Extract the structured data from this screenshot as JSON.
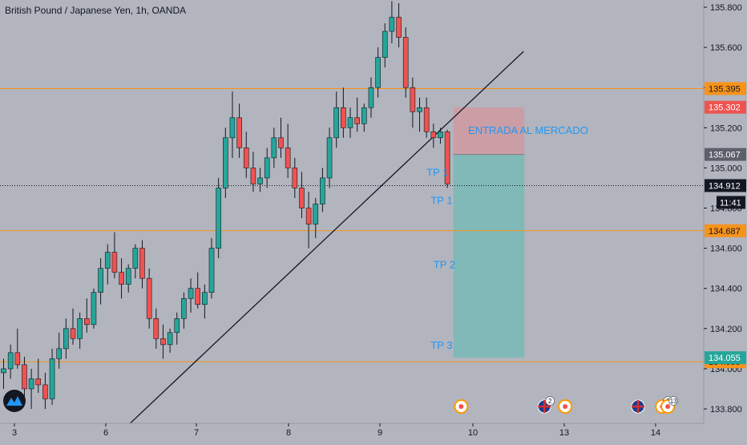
{
  "chart_data": {
    "type": "candlestick",
    "title": "British Pound / Japanese Yen, 1h, OANDA",
    "x_tick_labels": [
      "3",
      "6",
      "7",
      "8",
      "9",
      "10",
      "13",
      "14"
    ],
    "y_tick_labels": [
      "135.800",
      "135.600",
      "135.400",
      "135.200",
      "135.000",
      "134.800",
      "134.600",
      "134.400",
      "134.200",
      "134.000",
      "133.800"
    ],
    "ylim": [
      133.78,
      135.83
    ],
    "candles": [
      [
        133.98,
        134.05,
        133.9,
        134.0
      ],
      [
        134.0,
        134.12,
        133.95,
        134.08
      ],
      [
        134.08,
        134.2,
        134.0,
        134.02
      ],
      [
        134.02,
        134.06,
        133.85,
        133.9
      ],
      [
        133.9,
        134.0,
        133.8,
        133.95
      ],
      [
        133.95,
        134.05,
        133.88,
        133.92
      ],
      [
        133.92,
        133.98,
        133.8,
        133.85
      ],
      [
        133.85,
        134.1,
        133.82,
        134.05
      ],
      [
        134.05,
        134.18,
        134.0,
        134.1
      ],
      [
        134.1,
        134.25,
        134.05,
        134.2
      ],
      [
        134.2,
        134.3,
        134.12,
        134.15
      ],
      [
        134.15,
        134.28,
        134.1,
        134.25
      ],
      [
        134.25,
        134.35,
        134.18,
        134.22
      ],
      [
        134.22,
        134.4,
        134.2,
        134.38
      ],
      [
        134.38,
        134.55,
        134.32,
        134.5
      ],
      [
        134.5,
        134.62,
        134.42,
        134.58
      ],
      [
        134.58,
        134.68,
        134.45,
        134.48
      ],
      [
        134.48,
        134.55,
        134.35,
        134.42
      ],
      [
        134.42,
        134.52,
        134.38,
        134.5
      ],
      [
        134.5,
        134.62,
        134.45,
        134.6
      ],
      [
        134.6,
        134.64,
        134.4,
        134.45
      ],
      [
        134.45,
        134.5,
        134.2,
        134.25
      ],
      [
        134.25,
        134.3,
        134.1,
        134.15
      ],
      [
        134.15,
        134.22,
        134.05,
        134.12
      ],
      [
        134.12,
        134.2,
        134.08,
        134.18
      ],
      [
        134.18,
        134.28,
        134.12,
        134.25
      ],
      [
        134.25,
        134.38,
        134.2,
        134.35
      ],
      [
        134.35,
        134.45,
        134.28,
        134.4
      ],
      [
        134.4,
        134.48,
        134.3,
        134.32
      ],
      [
        134.32,
        134.42,
        134.25,
        134.38
      ],
      [
        134.38,
        134.65,
        134.35,
        134.6
      ],
      [
        134.6,
        134.95,
        134.55,
        134.9
      ],
      [
        134.9,
        135.2,
        134.85,
        135.15
      ],
      [
        135.15,
        135.38,
        135.05,
        135.25
      ],
      [
        135.25,
        135.32,
        135.05,
        135.1
      ],
      [
        135.1,
        135.18,
        134.95,
        135.0
      ],
      [
        135.0,
        135.08,
        134.88,
        134.92
      ],
      [
        134.92,
        135.0,
        134.88,
        134.95
      ],
      [
        134.95,
        135.1,
        134.9,
        135.05
      ],
      [
        135.05,
        135.2,
        135.0,
        135.15
      ],
      [
        135.15,
        135.25,
        135.05,
        135.1
      ],
      [
        135.1,
        135.22,
        134.95,
        135.0
      ],
      [
        135.0,
        135.05,
        134.85,
        134.9
      ],
      [
        134.9,
        134.98,
        134.75,
        134.8
      ],
      [
        134.8,
        134.88,
        134.6,
        134.72
      ],
      [
        134.72,
        134.85,
        134.65,
        134.82
      ],
      [
        134.82,
        135.0,
        134.78,
        134.95
      ],
      [
        134.95,
        135.2,
        134.9,
        135.15
      ],
      [
        135.15,
        135.38,
        135.1,
        135.3
      ],
      [
        135.3,
        135.4,
        135.15,
        135.2
      ],
      [
        135.2,
        135.3,
        135.15,
        135.25
      ],
      [
        135.25,
        135.35,
        135.18,
        135.22
      ],
      [
        135.22,
        135.32,
        135.18,
        135.3
      ],
      [
        135.3,
        135.45,
        135.25,
        135.4
      ],
      [
        135.4,
        135.6,
        135.35,
        135.55
      ],
      [
        135.55,
        135.72,
        135.5,
        135.68
      ],
      [
        135.68,
        135.83,
        135.62,
        135.75
      ],
      [
        135.75,
        135.82,
        135.6,
        135.65
      ],
      [
        135.65,
        135.7,
        135.35,
        135.4
      ],
      [
        135.4,
        135.45,
        135.2,
        135.28
      ],
      [
        135.28,
        135.35,
        135.18,
        135.3
      ],
      [
        135.3,
        135.35,
        135.15,
        135.18
      ],
      [
        135.18,
        135.22,
        135.1,
        135.15
      ],
      [
        135.15,
        135.2,
        135.12,
        135.18
      ],
      [
        135.18,
        135.19,
        134.9,
        134.92
      ]
    ],
    "horizontal_levels": [
      {
        "price": 135.395,
        "label": "135.395",
        "color": "#f7931a"
      },
      {
        "price": 134.687,
        "label": "134.687",
        "color": "#f7931a"
      },
      {
        "price": 134.035,
        "label": "134.035",
        "color": "#f7931a"
      }
    ],
    "price_labels": [
      {
        "price": 135.302,
        "label": "135.302",
        "color": "#ef5350"
      },
      {
        "price": 135.067,
        "label": "135.067",
        "color": "#5d606b"
      },
      {
        "price": 134.912,
        "label": "134.912",
        "color": "#131722"
      },
      {
        "price": 134.055,
        "label": "134.055",
        "color": "#26a69a"
      }
    ],
    "countdown": "11:41",
    "current_price": 134.912,
    "trendline": {
      "from_candle": 18,
      "from_price": 133.72,
      "to_candle": 75,
      "to_price": 135.58
    },
    "position": {
      "entry": 135.067,
      "stop": 135.302,
      "target": 134.055,
      "from_candle": 65,
      "to_candle": 75
    },
    "annotations": [
      {
        "text": "ENTRADA AL MERCADO",
        "price": 135.17,
        "candle": 67,
        "color": "#2196f3"
      },
      {
        "text": "TP 1",
        "price": 134.96,
        "candle": 61,
        "color": "#2196f3"
      },
      {
        "text": "TP 1",
        "price": 134.82,
        "candle": 61.6,
        "color": "#2196f3"
      },
      {
        "text": "TP 2",
        "price": 134.5,
        "candle": 62,
        "color": "#2196f3"
      },
      {
        "text": "TP 3",
        "price": 134.1,
        "candle": 61.6,
        "color": "#2196f3"
      }
    ],
    "event_icons": [
      {
        "candle": 66,
        "kind": "event",
        "badge": ""
      },
      {
        "candle": 78,
        "kind": "flag-uk",
        "badge": "2"
      },
      {
        "candle": 81,
        "kind": "event",
        "badge": ""
      },
      {
        "candle": 91.5,
        "kind": "flag-uk",
        "badge": ""
      },
      {
        "candle": 95,
        "kind": "event",
        "badge": "3"
      },
      {
        "candle": 95.8,
        "kind": "event",
        "badge": "13"
      }
    ]
  },
  "colors": {
    "up": "#26a69a",
    "down": "#ef5350",
    "background": "#b2b5be",
    "axis_text": "#131722"
  }
}
